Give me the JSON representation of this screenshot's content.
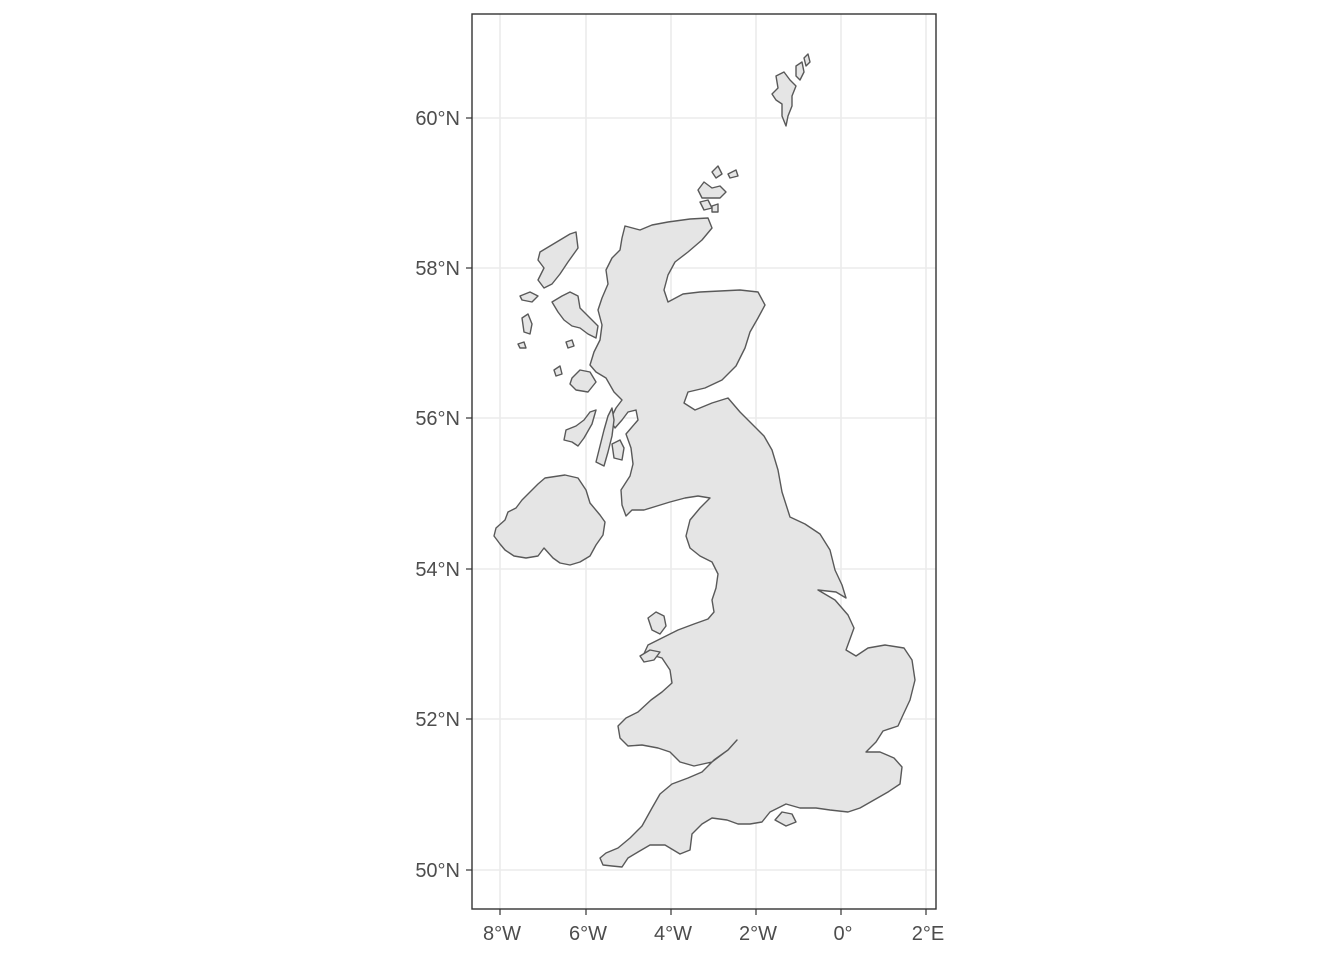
{
  "map": {
    "region": "United Kingdom",
    "background_color": "#ffffff",
    "land_fill": "#e5e5e5",
    "land_stroke": "#595959",
    "grid_color": "#ebebeb",
    "lat_range": [
      49.7,
      61.3
    ],
    "lon_range": [
      -8.6,
      2.2
    ],
    "lat_ticks": [
      {
        "value": 60,
        "label": "60°N"
      },
      {
        "value": 58,
        "label": "58°N"
      },
      {
        "value": 56,
        "label": "56°N"
      },
      {
        "value": 54,
        "label": "54°N"
      },
      {
        "value": 52,
        "label": "52°N"
      },
      {
        "value": 50,
        "label": "50°N"
      }
    ],
    "lon_ticks": [
      {
        "value": -8,
        "label": "8°W"
      },
      {
        "value": -6,
        "label": "6°W"
      },
      {
        "value": -4,
        "label": "4°W"
      },
      {
        "value": -2,
        "label": "2°W"
      },
      {
        "value": 0,
        "label": "0°"
      },
      {
        "value": 2,
        "label": "2°E"
      }
    ]
  }
}
